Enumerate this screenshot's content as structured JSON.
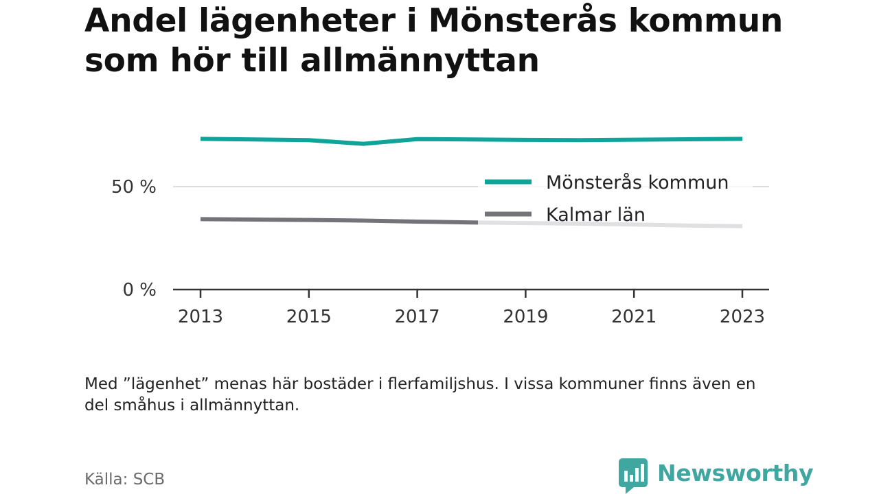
{
  "title": "Andel lägenheter i Mönsterås kommun som hör till allmännyttan",
  "note": "Med ”lägenhet” menas här bostäder i flerfamiljshus. I vissa kommuner finns även en del småhus i allmännyttan.",
  "source": "Källa: SCB",
  "brand": {
    "name": "Newsworthy",
    "color": "#3fa6a0"
  },
  "chart_data": {
    "type": "line",
    "x": [
      2013,
      2014,
      2015,
      2016,
      2017,
      2018,
      2019,
      2020,
      2021,
      2022,
      2023
    ],
    "x_ticks": [
      "2013",
      "2015",
      "2017",
      "2019",
      "2021",
      "2023"
    ],
    "y_ticks": [
      "0 %",
      "50 %"
    ],
    "ylim": [
      0,
      80
    ],
    "grid": true,
    "legend_position": "top-right",
    "series": [
      {
        "name": "Mönsterås kommun",
        "color": "#0fa39a",
        "values": [
          73.2,
          72.9,
          72.6,
          70.8,
          73.1,
          72.9,
          72.7,
          72.6,
          72.8,
          73.0,
          73.2
        ]
      },
      {
        "name": "Kalmar län",
        "color": "#74737a",
        "values": [
          34.2,
          34.0,
          33.8,
          33.5,
          33.0,
          32.6,
          32.3,
          32.0,
          31.6,
          31.1,
          30.8
        ]
      }
    ]
  }
}
